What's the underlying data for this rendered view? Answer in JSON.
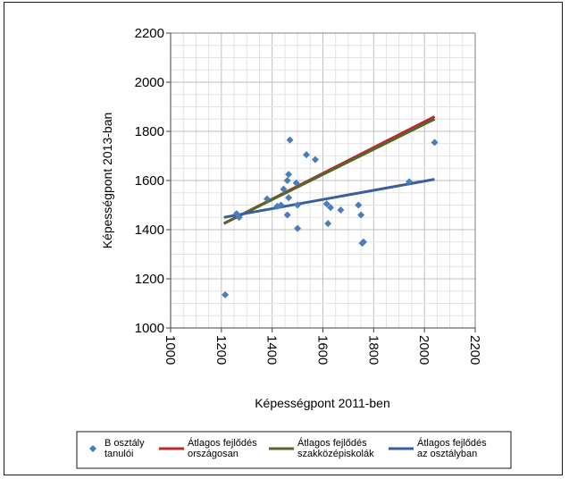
{
  "chart_data": {
    "type": "scatter",
    "title": "",
    "xlabel": "Képességpont 2011-ben",
    "ylabel": "Képességpont 2013-ban",
    "xlim": [
      1000,
      2200
    ],
    "ylim": [
      1000,
      2200
    ],
    "x_ticks": [
      1000,
      1200,
      1400,
      1600,
      1800,
      2000,
      2200
    ],
    "y_ticks": [
      1000,
      1200,
      1400,
      1600,
      1800,
      2000,
      2200
    ],
    "x_tick_labels": [
      "1000",
      "1200",
      "1400",
      "1600",
      "1800",
      "2000",
      "2200"
    ],
    "y_tick_labels": [
      "1000",
      "1200",
      "1400",
      "1600",
      "1800",
      "2000",
      "2200"
    ],
    "grid": true,
    "legend_position": "bottom",
    "series": [
      {
        "name": "B osztály tanulói",
        "kind": "scatter",
        "color": "#4a7ebb",
        "points": [
          [
            1215,
            1135
          ],
          [
            1260,
            1465
          ],
          [
            1270,
            1450
          ],
          [
            1380,
            1525
          ],
          [
            1420,
            1495
          ],
          [
            1435,
            1500
          ],
          [
            1445,
            1565
          ],
          [
            1460,
            1600
          ],
          [
            1465,
            1625
          ],
          [
            1465,
            1530
          ],
          [
            1460,
            1460
          ],
          [
            1470,
            1765
          ],
          [
            1495,
            1590
          ],
          [
            1500,
            1500
          ],
          [
            1500,
            1405
          ],
          [
            1535,
            1705
          ],
          [
            1570,
            1685
          ],
          [
            1615,
            1505
          ],
          [
            1620,
            1425
          ],
          [
            1630,
            1490
          ],
          [
            1670,
            1480
          ],
          [
            1740,
            1500
          ],
          [
            1750,
            1460
          ],
          [
            1755,
            1345
          ],
          [
            1760,
            1350
          ],
          [
            1940,
            1595
          ],
          [
            2040,
            1755
          ]
        ]
      },
      {
        "name": "Átlagos fejlődés országosan",
        "kind": "line",
        "color": "#c0262d",
        "points": [
          [
            1210,
            1425
          ],
          [
            2040,
            1860
          ]
        ]
      },
      {
        "name": "Átlagos fejlődés szakközépiskolák",
        "kind": "line",
        "color": "#56672a",
        "points": [
          [
            1210,
            1425
          ],
          [
            2040,
            1850
          ]
        ]
      },
      {
        "name": "Átlagos fejlődés az osztályban",
        "kind": "line",
        "color": "#3a5f9a",
        "points": [
          [
            1210,
            1450
          ],
          [
            2040,
            1605
          ]
        ]
      }
    ]
  },
  "legend": {
    "items": [
      {
        "line1": "B osztály",
        "line2": "tanulói"
      },
      {
        "line1": "Átlagos fejlődés",
        "line2": "országosan"
      },
      {
        "line1": "Átlagos fejlődés",
        "line2": "szakközépiskolák"
      },
      {
        "line1": "Átlagos fejlődés",
        "line2": "az osztályban"
      }
    ]
  }
}
